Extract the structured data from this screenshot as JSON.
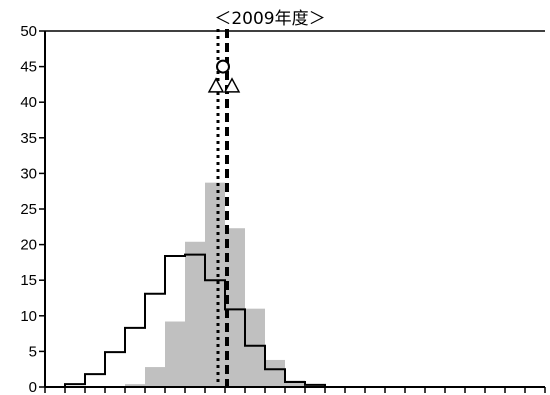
{
  "chart_data": {
    "type": "histogram",
    "title": "＜2009年度＞",
    "ylim": [
      0,
      50
    ],
    "y_ticks": [
      "0",
      "5",
      "10",
      "15",
      "20",
      "25",
      "30",
      "35",
      "40",
      "45",
      "50"
    ],
    "bin_count": 25,
    "gray_bars": {
      "start_bin": 4,
      "values": [
        0.4,
        2.8,
        9.2,
        20.4,
        28.7,
        22.3,
        11.0,
        3.8,
        0.9
      ]
    },
    "step_outline": {
      "start_bin": 1,
      "values": [
        0.4,
        1.8,
        4.9,
        8.3,
        13.1,
        18.4,
        18.6,
        15.0,
        10.9,
        5.8,
        2.5,
        0.7,
        0.3
      ]
    },
    "reference_lines": [
      {
        "style": "dotted",
        "bin_position": 8.65
      },
      {
        "style": "dashed",
        "bin_position": 9.1
      }
    ],
    "markers": [
      {
        "shape": "circle",
        "bin_position": 8.9,
        "value": 45.0
      },
      {
        "shape": "triangle",
        "bin_position": 8.55,
        "value": 42.3
      },
      {
        "shape": "triangle",
        "bin_position": 9.35,
        "value": 42.3
      }
    ]
  }
}
